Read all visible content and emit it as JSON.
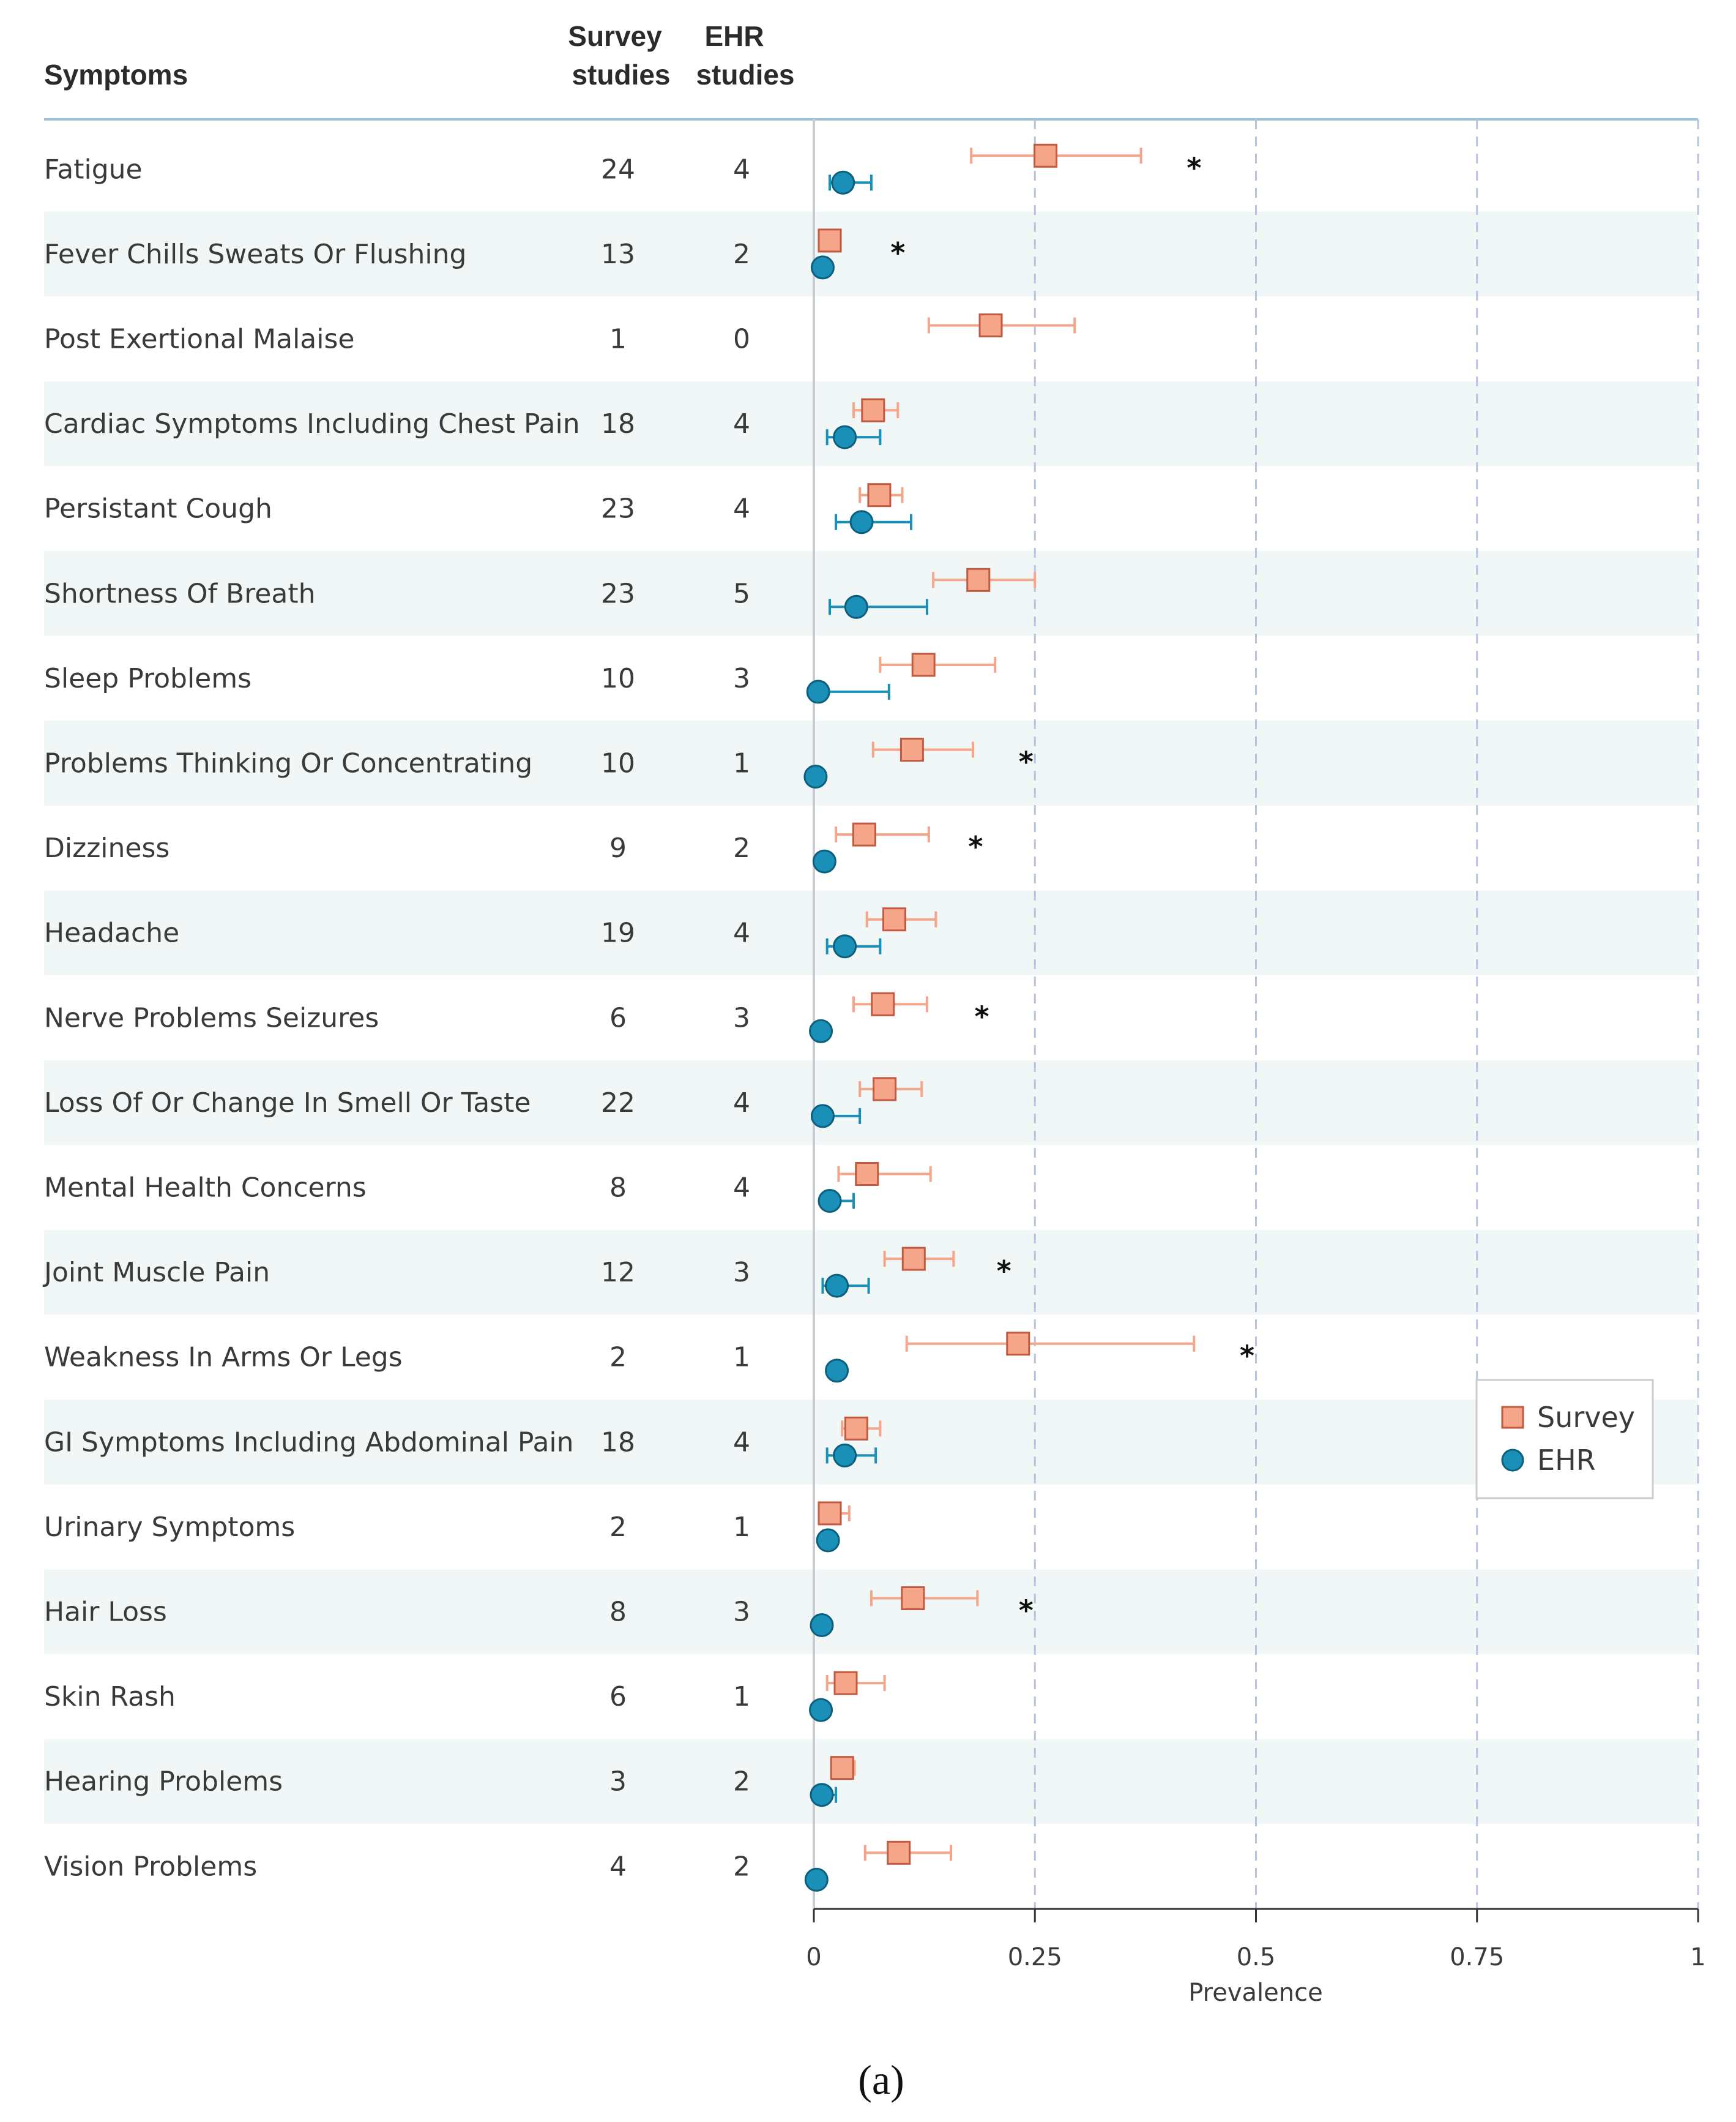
{
  "chart_data": {
    "type": "forest",
    "column_headers": {
      "symptoms": "Symptoms",
      "survey_line1": "Survey",
      "survey_line2": "studies",
      "ehr_line1": "EHR",
      "ehr_line2": "studies"
    },
    "xlabel": "Prevalence",
    "xlim": [
      0,
      1
    ],
    "xticks": [
      0,
      0.25,
      0.5,
      0.75,
      1
    ],
    "xtick_labels": [
      "0",
      "0.25",
      "0.5",
      "0.75",
      "1"
    ],
    "legend": {
      "position": "right",
      "entries": [
        {
          "name": "Survey",
          "color": "#f4a58a",
          "marker": "square"
        },
        {
          "name": "EHR",
          "color": "#1a8fb8",
          "marker": "circle"
        }
      ]
    },
    "series": [
      {
        "name": "Survey",
        "color": "#f4a58a"
      },
      {
        "name": "EHR",
        "color": "#1a8fb8"
      }
    ],
    "rows": [
      {
        "label": "Fatigue",
        "survey_n": "24",
        "ehr_n": "4",
        "survey": [
          0.262,
          0.178,
          0.37
        ],
        "ehr": [
          0.033,
          0.018,
          0.065
        ],
        "sig": true,
        "sig_x": 0.43
      },
      {
        "label": "Fever Chills Sweats Or Flushing",
        "survey_n": "13",
        "ehr_n": "2",
        "survey": [
          0.018,
          0.012,
          0.025
        ],
        "ehr": [
          0.01,
          0.007,
          0.014
        ],
        "sig": true,
        "sig_x": 0.095
      },
      {
        "label": "Post Exertional Malaise",
        "survey_n": "1",
        "ehr_n": "0",
        "survey": [
          0.2,
          0.13,
          0.295
        ],
        "ehr": null,
        "sig": false
      },
      {
        "label": "Cardiac Symptoms Including Chest Pain",
        "survey_n": "18",
        "ehr_n": "4",
        "survey": [
          0.067,
          0.045,
          0.095
        ],
        "ehr": [
          0.035,
          0.015,
          0.075
        ],
        "sig": false
      },
      {
        "label": "Persistant Cough",
        "survey_n": "23",
        "ehr_n": "4",
        "survey": [
          0.074,
          0.052,
          0.1
        ],
        "ehr": [
          0.054,
          0.025,
          0.11
        ],
        "sig": false
      },
      {
        "label": "Shortness Of Breath",
        "survey_n": "23",
        "ehr_n": "5",
        "survey": [
          0.186,
          0.135,
          0.25
        ],
        "ehr": [
          0.048,
          0.018,
          0.128
        ],
        "sig": false
      },
      {
        "label": "Sleep Problems",
        "survey_n": "10",
        "ehr_n": "3",
        "survey": [
          0.124,
          0.075,
          0.205
        ],
        "ehr": [
          0.005,
          0.002,
          0.085
        ],
        "sig": false
      },
      {
        "label": "Problems Thinking Or Concentrating",
        "survey_n": "10",
        "ehr_n": "1",
        "survey": [
          0.111,
          0.067,
          0.18
        ],
        "ehr": [
          0.002,
          0.001,
          0.004
        ],
        "sig": true,
        "sig_x": 0.24
      },
      {
        "label": "Dizziness",
        "survey_n": "9",
        "ehr_n": "2",
        "survey": [
          0.057,
          0.025,
          0.13
        ],
        "ehr": [
          0.012,
          0.009,
          0.016
        ],
        "sig": true,
        "sig_x": 0.183
      },
      {
        "label": "Headache",
        "survey_n": "19",
        "ehr_n": "4",
        "survey": [
          0.091,
          0.06,
          0.138
        ],
        "ehr": [
          0.035,
          0.015,
          0.075
        ],
        "sig": false
      },
      {
        "label": "Nerve Problems Seizures",
        "survey_n": "6",
        "ehr_n": "3",
        "survey": [
          0.078,
          0.045,
          0.128
        ],
        "ehr": [
          0.008,
          0.005,
          0.012
        ],
        "sig": true,
        "sig_x": 0.19
      },
      {
        "label": "Loss Of Or Change In Smell Or Taste",
        "survey_n": "22",
        "ehr_n": "4",
        "survey": [
          0.08,
          0.052,
          0.122
        ],
        "ehr": [
          0.01,
          0.004,
          0.052
        ],
        "sig": false
      },
      {
        "label": "Mental Health Concerns",
        "survey_n": "8",
        "ehr_n": "4",
        "survey": [
          0.06,
          0.028,
          0.132
        ],
        "ehr": [
          0.018,
          0.01,
          0.045
        ],
        "sig": false
      },
      {
        "label": "Joint Muscle Pain",
        "survey_n": "12",
        "ehr_n": "3",
        "survey": [
          0.113,
          0.08,
          0.158
        ],
        "ehr": [
          0.026,
          0.01,
          0.062
        ],
        "sig": true,
        "sig_x": 0.215
      },
      {
        "label": "Weakness In Arms Or Legs",
        "survey_n": "2",
        "ehr_n": "1",
        "survey": [
          0.231,
          0.105,
          0.43
        ],
        "ehr": [
          0.026,
          0.023,
          0.029
        ],
        "sig": true,
        "sig_x": 0.49
      },
      {
        "label": "GI Symptoms Including Abdominal Pain",
        "survey_n": "18",
        "ehr_n": "4",
        "survey": [
          0.048,
          0.032,
          0.075
        ],
        "ehr": [
          0.035,
          0.015,
          0.07
        ],
        "sig": false
      },
      {
        "label": "Urinary Symptoms",
        "survey_n": "2",
        "ehr_n": "1",
        "survey": [
          0.018,
          0.01,
          0.04
        ],
        "ehr": [
          0.016,
          0.013,
          0.019
        ],
        "sig": false
      },
      {
        "label": "Hair Loss",
        "survey_n": "8",
        "ehr_n": "3",
        "survey": [
          0.112,
          0.065,
          0.185
        ],
        "ehr": [
          0.009,
          0.006,
          0.013
        ],
        "sig": true,
        "sig_x": 0.24
      },
      {
        "label": "Skin Rash",
        "survey_n": "6",
        "ehr_n": "1",
        "survey": [
          0.036,
          0.015,
          0.08
        ],
        "ehr": [
          0.008,
          0.006,
          0.011
        ],
        "sig": false
      },
      {
        "label": "Hearing Problems",
        "survey_n": "3",
        "ehr_n": "2",
        "survey": [
          0.032,
          0.022,
          0.046
        ],
        "ehr": [
          0.009,
          0.004,
          0.025
        ],
        "sig": false
      },
      {
        "label": "Vision Problems",
        "survey_n": "4",
        "ehr_n": "2",
        "survey": [
          0.096,
          0.058,
          0.155
        ],
        "ehr": [
          0.003,
          0.001,
          0.005
        ],
        "sig": false
      }
    ]
  },
  "caption": "(a)",
  "sig_marker": "*",
  "colors": {
    "survey": "#f4a58a",
    "survey_stroke": "#c25a3f",
    "ehr": "#1a8fb8",
    "ehr_stroke": "#0c5f7d",
    "band": "#f1f6f7"
  }
}
